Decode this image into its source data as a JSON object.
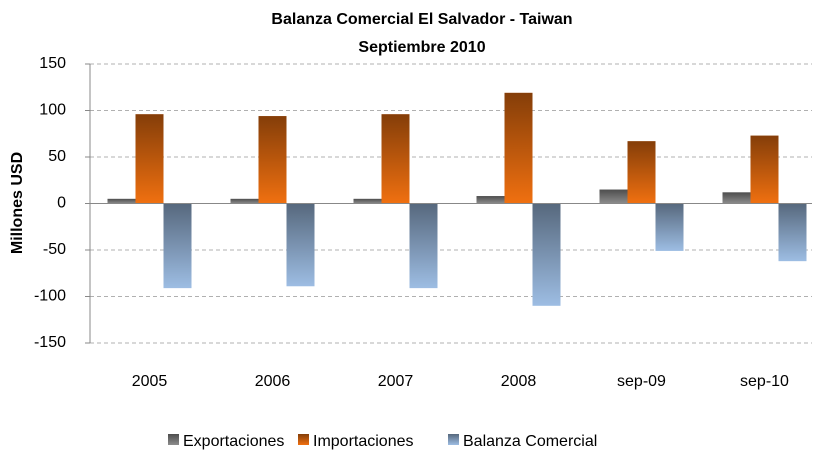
{
  "chart_data": {
    "type": "bar",
    "title": "Balanza Comercial El Salvador - Taiwan",
    "subtitle": "Septiembre 2010",
    "y_label": "Millones USD",
    "categories": [
      "2005",
      "2006",
      "2007",
      "2008",
      "sep-09",
      "sep-10"
    ],
    "series": [
      {
        "name": "Exportaciones",
        "color": "#8c8c8c",
        "values": [
          5,
          5,
          5,
          8,
          15,
          12
        ]
      },
      {
        "name": "Importaciones",
        "color": "#f07010",
        "values": [
          96,
          94,
          96,
          119,
          67,
          73
        ]
      },
      {
        "name": "Balanza Comercial",
        "color": "#9dbde3",
        "values": [
          -91,
          -89,
          -91,
          -110,
          -51,
          -62
        ]
      }
    ],
    "ylim": [
      -150,
      150
    ],
    "yticks": [
      -150,
      -100,
      -50,
      0,
      50,
      100,
      150
    ],
    "grid": true,
    "legend": "bottom"
  }
}
